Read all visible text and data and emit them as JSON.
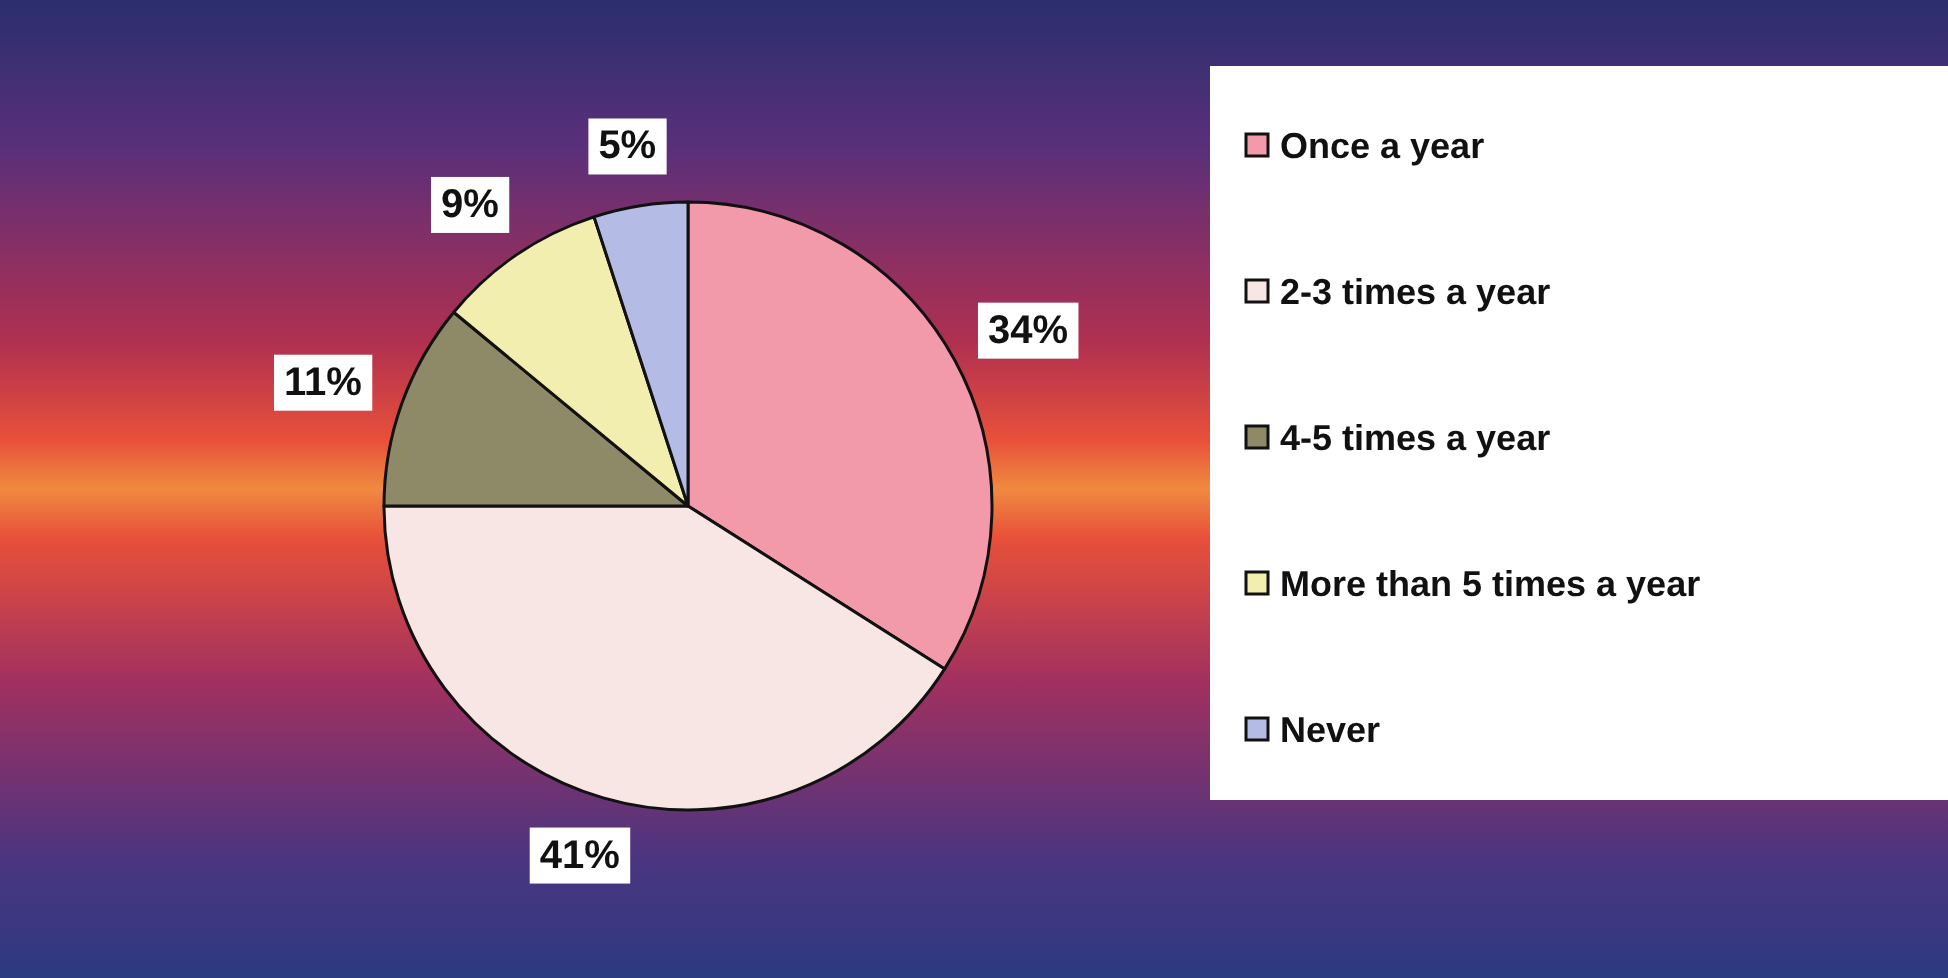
{
  "chart_data": {
    "type": "pie",
    "categories": [
      "Once a year",
      "2-3 times a year",
      "4-5 times a year",
      "More than 5 times a year",
      "Never"
    ],
    "values": [
      34,
      41,
      11,
      9,
      5
    ],
    "colors": [
      "#f29aaa",
      "#f7e6e4",
      "#8e8a68",
      "#f2eeb0",
      "#b4bce6"
    ],
    "value_labels": [
      "34%",
      "41%",
      "11%",
      "9%",
      "5%"
    ],
    "legend": "right"
  }
}
